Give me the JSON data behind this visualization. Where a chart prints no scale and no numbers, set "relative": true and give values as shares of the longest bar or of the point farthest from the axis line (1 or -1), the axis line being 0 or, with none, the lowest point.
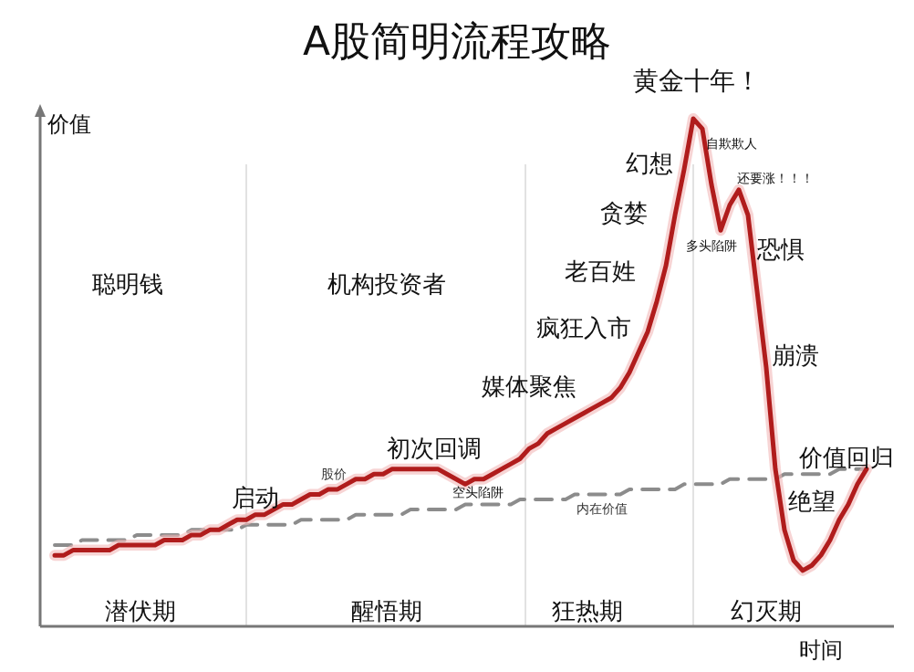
{
  "chart_data": {
    "type": "line",
    "title": "A股简明流程攻略",
    "xlabel": "时间",
    "ylabel": "价值",
    "relative": true,
    "legend": false,
    "grid": false,
    "marker": "none",
    "categories": [
      null,
      null,
      null,
      null,
      null,
      null,
      null,
      null,
      null,
      null,
      null,
      null,
      null,
      null,
      null,
      null,
      null,
      null,
      null,
      null,
      null,
      null,
      null,
      null,
      null,
      null,
      null,
      null,
      null,
      null,
      null,
      null,
      null,
      null,
      null,
      null,
      null,
      null,
      null,
      null,
      null,
      null,
      null,
      null,
      null,
      null,
      null,
      null,
      null,
      null,
      null,
      null,
      null,
      null,
      null,
      null,
      null,
      null,
      null,
      null,
      null,
      null,
      null,
      null,
      null,
      null,
      null,
      null,
      null,
      null,
      null,
      null,
      null,
      null,
      null,
      null,
      null,
      null,
      null,
      null,
      null,
      null,
      null,
      null,
      null,
      null,
      null,
      null,
      null,
      null
    ],
    "series": [
      {
        "name": "内在价值",
        "color": "#8c8c8c",
        "line_style": "dashed",
        "values": [
          0.16,
          0.16,
          0.16,
          0.17,
          0.17,
          0.17,
          0.17,
          0.17,
          0.17,
          0.18,
          0.18,
          0.18,
          0.18,
          0.18,
          0.18,
          0.19,
          0.19,
          0.19,
          0.19,
          0.19,
          0.19,
          0.2,
          0.2,
          0.2,
          0.2,
          0.2,
          0.2,
          0.21,
          0.21,
          0.21,
          0.21,
          0.21,
          0.21,
          0.22,
          0.22,
          0.22,
          0.22,
          0.22,
          0.22,
          0.23,
          0.23,
          0.23,
          0.23,
          0.23,
          0.23,
          0.24,
          0.24,
          0.24,
          0.24,
          0.24,
          0.24,
          0.25,
          0.25,
          0.25,
          0.25,
          0.25,
          0.25,
          0.26,
          0.26,
          0.26,
          0.26,
          0.26,
          0.26,
          0.27,
          0.27,
          0.27,
          0.27,
          0.27,
          0.27,
          0.28,
          0.28,
          0.28,
          0.28,
          0.28,
          0.29,
          0.29,
          0.29,
          0.29,
          0.29,
          0.29,
          0.3,
          0.3,
          0.3,
          0.3,
          0.3,
          0.3,
          0.31,
          0.31,
          0.31,
          0.31
        ]
      },
      {
        "name": "股价",
        "color": "#b01c1c",
        "line_style": "solid",
        "values": [
          0.14,
          0.14,
          0.15,
          0.15,
          0.15,
          0.15,
          0.15,
          0.16,
          0.16,
          0.16,
          0.16,
          0.16,
          0.17,
          0.17,
          0.17,
          0.18,
          0.18,
          0.19,
          0.19,
          0.2,
          0.21,
          0.21,
          0.22,
          0.22,
          0.23,
          0.24,
          0.24,
          0.25,
          0.26,
          0.26,
          0.27,
          0.27,
          0.28,
          0.29,
          0.29,
          0.3,
          0.3,
          0.31,
          0.31,
          0.31,
          0.31,
          0.31,
          0.31,
          0.3,
          0.29,
          0.28,
          0.29,
          0.29,
          0.3,
          0.31,
          0.32,
          0.33,
          0.35,
          0.36,
          0.38,
          0.39,
          0.4,
          0.41,
          0.42,
          0.43,
          0.44,
          0.45,
          0.47,
          0.5,
          0.54,
          0.58,
          0.64,
          0.71,
          0.81,
          0.9,
          1,
          0.98,
          0.87,
          0.78,
          0.83,
          0.86,
          0.81,
          0.66,
          0.51,
          0.31,
          0.19,
          0.13,
          0.11,
          0.12,
          0.14,
          0.17,
          0.21,
          0.24,
          0.28,
          0.31
        ]
      }
    ],
    "annotations": [
      "聪明钱",
      "机构投资者",
      "潜伏期",
      "醒悟期",
      "狂热期",
      "幻灭期",
      "启动",
      "初次回调",
      "空头陷阱",
      "媒体聚焦",
      "疯狂入市",
      "老百姓",
      "贪婪",
      "幻想",
      "黄金十年！",
      "自欺欺人",
      "多头陷阱",
      "还要涨！！！",
      "恐惧",
      "崩溃",
      "绝望",
      "价值回归"
    ]
  }
}
